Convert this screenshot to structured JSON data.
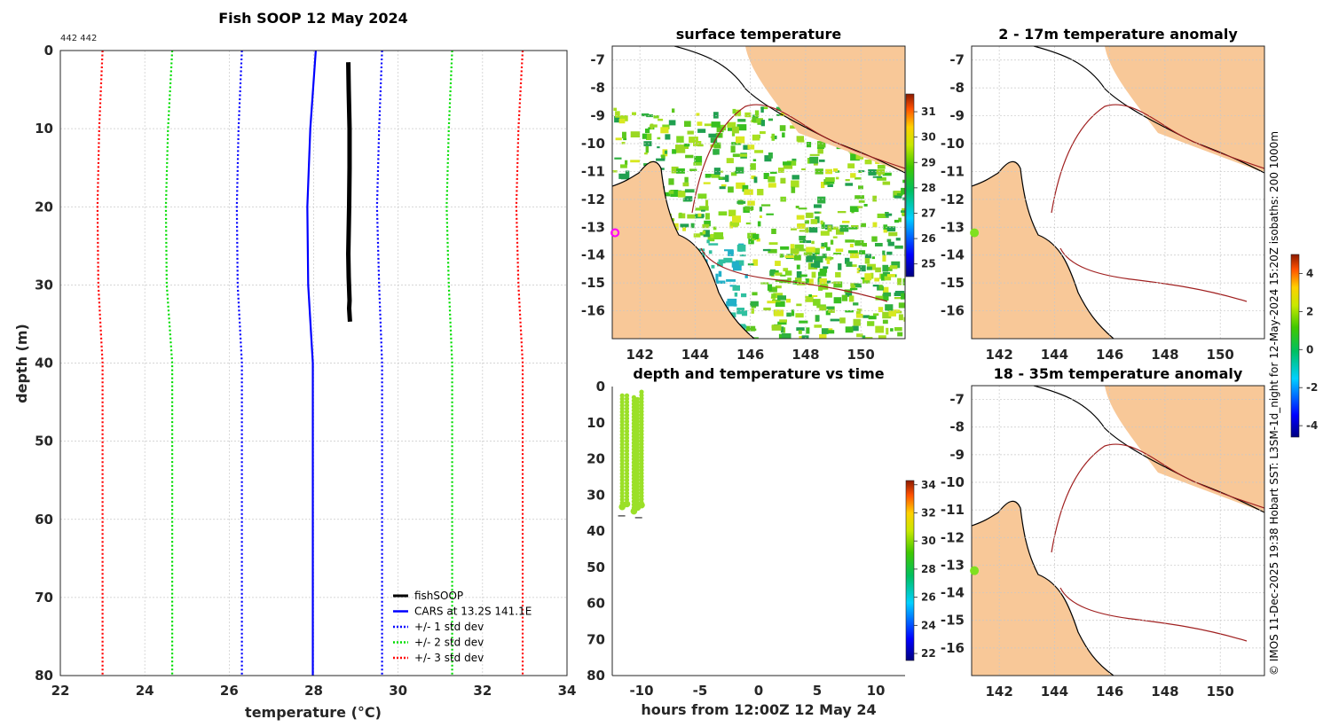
{
  "figure": {
    "title": "Fish SOOP 12 May 2024",
    "corner_note": "442 442",
    "credit": "© IMOS 11-Dec-2025 19:38 Hobart SST: L3SM-1d_night for 12-May-2024 15:20Z  isobaths: 200  1000m"
  },
  "chart_data": [
    {
      "id": "profile",
      "type": "line",
      "title": "Fish SOOP 12 May 2024",
      "xlabel": "temperature (°C)",
      "ylabel": "depth (m)",
      "xlim": [
        22,
        34
      ],
      "ylim": [
        80,
        0
      ],
      "xticks": [
        22,
        24,
        26,
        28,
        30,
        32,
        34
      ],
      "yticks": [
        0,
        10,
        20,
        30,
        40,
        50,
        60,
        70,
        80
      ],
      "grid": true,
      "legend_position": "bottom-right",
      "depths": [
        0,
        10,
        20,
        30,
        40,
        50,
        60,
        70,
        80
      ],
      "series": [
        {
          "name": "fishSOOP",
          "color": "#000000",
          "style": "solid",
          "width": 5,
          "x": [
            28.82,
            28.83,
            28.85,
            28.85,
            28.84,
            28.83,
            28.82,
            28.83,
            28.85,
            28.84,
            28.86
          ],
          "y": [
            1.5,
            5,
            10,
            15,
            20,
            23,
            26,
            29,
            32,
            33,
            34.7
          ]
        },
        {
          "name": "CARS at 13.2S 141.1E",
          "color": "#0000ff",
          "style": "solid",
          "width": 2.2,
          "x": [
            28.05,
            27.92,
            27.85,
            27.87,
            27.98,
            27.98,
            27.98,
            27.98,
            27.98
          ]
        },
        {
          "name": "+/- 1 std dev",
          "color": "#0000ff",
          "style": "dotted",
          "width": 2.2,
          "x": [
            26.3,
            26.22,
            26.18,
            26.2,
            26.3,
            26.3,
            26.3,
            26.3,
            26.3
          ],
          "x2": [
            29.62,
            29.55,
            29.5,
            29.55,
            29.62,
            29.62,
            29.62,
            29.62,
            29.62
          ]
        },
        {
          "name": "+/- 2 std dev",
          "color": "#00dd00",
          "style": "dotted",
          "width": 2.2,
          "x": [
            24.65,
            24.55,
            24.5,
            24.52,
            24.65,
            24.65,
            24.65,
            24.65,
            24.65
          ],
          "x2": [
            31.28,
            31.2,
            31.15,
            31.2,
            31.28,
            31.28,
            31.28,
            31.28,
            31.28
          ]
        },
        {
          "name": "+/- 3 std dev",
          "color": "#ff0000",
          "style": "dotted",
          "width": 2.2,
          "x": [
            23.0,
            22.92,
            22.88,
            22.9,
            23.0,
            23.0,
            23.0,
            23.0,
            23.0
          ],
          "x2": [
            32.95,
            32.85,
            32.8,
            32.85,
            32.95,
            32.95,
            32.95,
            32.95,
            32.95
          ]
        }
      ]
    },
    {
      "id": "surface",
      "type": "heatmap",
      "title": "surface temperature",
      "xticks": [
        142,
        144,
        146,
        148,
        150
      ],
      "yticks": [
        -7,
        -8,
        -9,
        -10,
        -11,
        -12,
        -13,
        -14,
        -15,
        -16
      ],
      "xlim": [
        141,
        151.6
      ],
      "ylim": [
        -17,
        -6.5
      ],
      "colorbar": {
        "ticks": [
          25,
          26,
          27,
          28,
          29,
          30,
          31
        ],
        "range": [
          24.5,
          31.7
        ]
      },
      "marker": {
        "lon": 141.1,
        "lat": -13.2,
        "color": "#ff00ff",
        "shape": "ring"
      }
    },
    {
      "id": "time",
      "type": "scatter",
      "title": "depth and temperature vs time",
      "xlabel": "hours from 12:00Z 12 May 24",
      "xticks": [
        -10,
        -5,
        0,
        5,
        10
      ],
      "yticks": [
        0,
        10,
        20,
        30,
        40,
        50,
        60,
        70,
        80
      ],
      "xlim": [
        -12.5,
        12.5
      ],
      "ylim": [
        80,
        0
      ],
      "colorbar": {
        "ticks": [
          22,
          24,
          26,
          28,
          30,
          32,
          34
        ],
        "range": [
          21.5,
          34.3
        ]
      },
      "point_color": "#9be028",
      "casts": [
        {
          "hour": -11.65,
          "top": 2.5,
          "bottom": 33.3
        },
        {
          "hour": -11.25,
          "top": 2.5,
          "bottom": 32.5
        },
        {
          "hour": -10.65,
          "top": 3.0,
          "bottom": 34.5
        },
        {
          "hour": -10.35,
          "top": 3.5,
          "bottom": 33.5
        },
        {
          "hour": -10.0,
          "top": 1.5,
          "bottom": 32.8
        }
      ],
      "floor_marks": [
        {
          "hour": -11.7,
          "depth": 35.8
        },
        {
          "hour": -10.25,
          "depth": 36.3
        }
      ]
    },
    {
      "id": "anom1",
      "type": "heatmap",
      "title": "2 - 17m temperature anomaly",
      "xticks": [
        142,
        144,
        146,
        148,
        150
      ],
      "yticks": [
        -7,
        -8,
        -9,
        -10,
        -11,
        -12,
        -13,
        -14,
        -15,
        -16
      ],
      "xlim": [
        141,
        151.6
      ],
      "ylim": [
        -17,
        -6.5
      ],
      "marker": {
        "lon": 141.1,
        "lat": -13.2,
        "color": "#7fe020",
        "shape": "dot"
      }
    },
    {
      "id": "anom2",
      "type": "heatmap",
      "title": "18 - 35m temperature anomaly",
      "xticks": [
        142,
        144,
        146,
        148,
        150
      ],
      "yticks": [
        -7,
        -8,
        -9,
        -10,
        -11,
        -12,
        -13,
        -14,
        -15,
        -16
      ],
      "xlim": [
        141,
        151.6
      ],
      "ylim": [
        -17,
        -6.5
      ],
      "marker": {
        "lon": 141.1,
        "lat": -13.2,
        "color": "#7fe020",
        "shape": "dot"
      }
    },
    {
      "id": "anom_colorbar",
      "type": "heatmap",
      "ticks": [
        -4,
        -2,
        0,
        2,
        4
      ],
      "range": [
        -4.6,
        5.0
      ]
    }
  ]
}
